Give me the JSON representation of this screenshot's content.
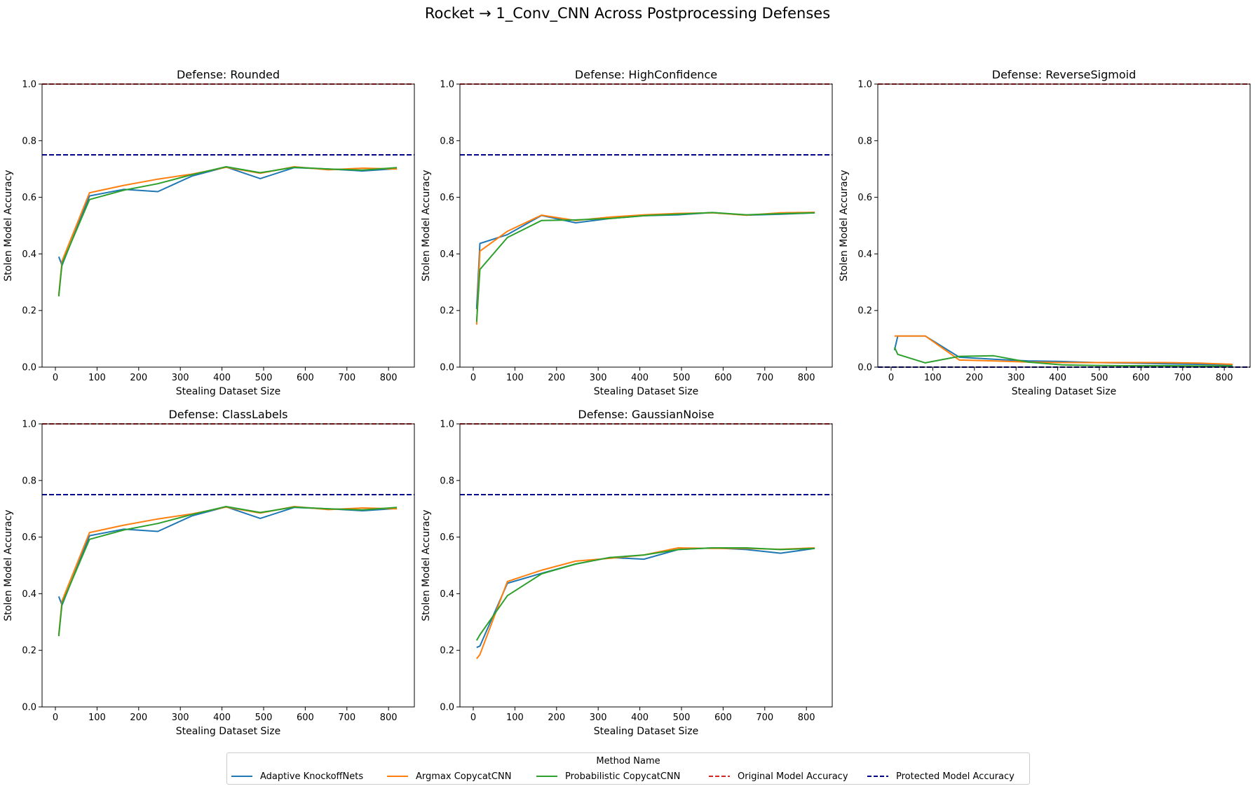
{
  "figure_title": "Rocket → 1_Conv_CNN Across Postprocessing Defenses",
  "colors": {
    "adaptive": "#1f77b4",
    "argmax": "#ff7f0e",
    "probabilistic": "#2ca02c",
    "original": "#d62728",
    "protected": "#00008b"
  },
  "legend": {
    "title": "Method Name",
    "items": [
      {
        "label": "Adaptive KnockoffNets",
        "color": "#1f77b4",
        "style": "solid"
      },
      {
        "label": "Argmax CopycatCNN",
        "color": "#ff7f0e",
        "style": "solid"
      },
      {
        "label": "Probabilistic CopycatCNN",
        "color": "#2ca02c",
        "style": "solid"
      },
      {
        "label": "Original Model Accuracy",
        "color": "#d62728",
        "style": "dashed"
      },
      {
        "label": "Protected Model Accuracy",
        "color": "#00008b",
        "style": "dashed"
      }
    ]
  },
  "chart_data": [
    {
      "type": "line",
      "title": "Defense: Rounded",
      "xlabel": "Stealing Dataset Size",
      "ylabel": "Stolen Model Accuracy",
      "xlim": [
        -32,
        862
      ],
      "ylim": [
        0,
        1.0
      ],
      "xticks": [
        0,
        100,
        200,
        300,
        400,
        500,
        600,
        700,
        800
      ],
      "yticks": [
        "0.0",
        "0.2",
        "0.4",
        "0.6",
        "0.8",
        "1.0"
      ],
      "hlines": [
        {
          "name": "Original Model Accuracy",
          "y": 1.0
        },
        {
          "name": "Protected Model Accuracy",
          "y": 0.75
        }
      ],
      "series": [
        {
          "name": "Adaptive KnockoffNets",
          "x": [
            8,
            16,
            82,
            164,
            246,
            328,
            410,
            492,
            574,
            656,
            738,
            820
          ],
          "values": [
            0.39,
            0.36,
            0.605,
            0.628,
            0.62,
            0.675,
            0.707,
            0.666,
            0.705,
            0.7,
            0.693,
            0.701
          ]
        },
        {
          "name": "Argmax CopycatCNN",
          "x": [
            8,
            16,
            82,
            164,
            246,
            328,
            410,
            492,
            574,
            656,
            738,
            820
          ],
          "values": [
            0.255,
            0.375,
            0.616,
            0.642,
            0.664,
            0.682,
            0.706,
            0.685,
            0.708,
            0.697,
            0.703,
            0.7
          ]
        },
        {
          "name": "Probabilistic CopycatCNN",
          "x": [
            8,
            16,
            82,
            164,
            246,
            328,
            410,
            492,
            574,
            656,
            738,
            820
          ],
          "values": [
            0.25,
            0.365,
            0.592,
            0.625,
            0.648,
            0.68,
            0.708,
            0.687,
            0.706,
            0.7,
            0.696,
            0.705
          ]
        }
      ]
    },
    {
      "type": "line",
      "title": "Defense: HighConfidence",
      "xlabel": "Stealing Dataset Size",
      "ylabel": "Stolen Model Accuracy",
      "xlim": [
        -32,
        862
      ],
      "ylim": [
        0,
        1.0
      ],
      "xticks": [
        0,
        100,
        200,
        300,
        400,
        500,
        600,
        700,
        800
      ],
      "yticks": [
        "0.0",
        "0.2",
        "0.4",
        "0.6",
        "0.8",
        "1.0"
      ],
      "hlines": [
        {
          "name": "Original Model Accuracy",
          "y": 1.0
        },
        {
          "name": "Protected Model Accuracy",
          "y": 0.75
        }
      ],
      "series": [
        {
          "name": "Adaptive KnockoffNets",
          "x": [
            8,
            16,
            82,
            164,
            246,
            328,
            410,
            492,
            574,
            656,
            738,
            820
          ],
          "values": [
            0.205,
            0.437,
            0.468,
            0.536,
            0.51,
            0.525,
            0.535,
            0.538,
            0.546,
            0.537,
            0.54,
            0.545
          ]
        },
        {
          "name": "Argmax CopycatCNN",
          "x": [
            8,
            16,
            82,
            164,
            246,
            328,
            410,
            492,
            574,
            656,
            738,
            820
          ],
          "values": [
            0.15,
            0.41,
            0.48,
            0.537,
            0.518,
            0.53,
            0.538,
            0.543,
            0.545,
            0.537,
            0.545,
            0.547
          ]
        },
        {
          "name": "Probabilistic CopycatCNN",
          "x": [
            8,
            16,
            82,
            164,
            246,
            328,
            410,
            492,
            574,
            656,
            738,
            820
          ],
          "values": [
            0.16,
            0.345,
            0.458,
            0.518,
            0.52,
            0.525,
            0.535,
            0.54,
            0.546,
            0.538,
            0.542,
            0.545
          ]
        }
      ]
    },
    {
      "type": "line",
      "title": "Defense: ReverseSigmoid",
      "xlabel": "Stealing Dataset Size",
      "ylabel": "Stolen Model Accuracy",
      "xlim": [
        -32,
        862
      ],
      "ylim": [
        0,
        1.0
      ],
      "xticks": [
        0,
        100,
        200,
        300,
        400,
        500,
        600,
        700,
        800
      ],
      "yticks": [
        "0.0",
        "0.2",
        "0.4",
        "0.6",
        "0.8",
        "1.0"
      ],
      "hlines": [
        {
          "name": "Original Model Accuracy",
          "y": 1.0
        },
        {
          "name": "Protected Model Accuracy",
          "y": 0.0
        }
      ],
      "series": [
        {
          "name": "Adaptive KnockoffNets",
          "x": [
            8,
            16,
            82,
            164,
            246,
            328,
            410,
            492,
            574,
            656,
            738,
            820
          ],
          "values": [
            0.06,
            0.11,
            0.11,
            0.035,
            0.028,
            0.022,
            0.02,
            0.016,
            0.014,
            0.012,
            0.01,
            0.008
          ]
        },
        {
          "name": "Argmax CopycatCNN",
          "x": [
            8,
            16,
            82,
            164,
            246,
            328,
            410,
            492,
            574,
            656,
            738,
            820
          ],
          "values": [
            0.11,
            0.11,
            0.11,
            0.025,
            0.022,
            0.018,
            0.016,
            0.016,
            0.016,
            0.016,
            0.014,
            0.01
          ]
        },
        {
          "name": "Probabilistic CopycatCNN",
          "x": [
            8,
            16,
            82,
            164,
            246,
            328,
            410,
            492,
            574,
            656,
            738,
            820
          ],
          "values": [
            0.07,
            0.045,
            0.015,
            0.038,
            0.04,
            0.018,
            0.008,
            0.006,
            0.005,
            0.005,
            0.004,
            0.004
          ]
        }
      ]
    },
    {
      "type": "line",
      "title": "Defense: ClassLabels",
      "xlabel": "Stealing Dataset Size",
      "ylabel": "Stolen Model Accuracy",
      "xlim": [
        -32,
        862
      ],
      "ylim": [
        0,
        1.0
      ],
      "xticks": [
        0,
        100,
        200,
        300,
        400,
        500,
        600,
        700,
        800
      ],
      "yticks": [
        "0.0",
        "0.2",
        "0.4",
        "0.6",
        "0.8",
        "1.0"
      ],
      "hlines": [
        {
          "name": "Original Model Accuracy",
          "y": 1.0
        },
        {
          "name": "Protected Model Accuracy",
          "y": 0.75
        }
      ],
      "series": [
        {
          "name": "Adaptive KnockoffNets",
          "x": [
            8,
            16,
            82,
            164,
            246,
            328,
            410,
            492,
            574,
            656,
            738,
            820
          ],
          "values": [
            0.39,
            0.36,
            0.605,
            0.628,
            0.62,
            0.675,
            0.707,
            0.666,
            0.705,
            0.7,
            0.693,
            0.701
          ]
        },
        {
          "name": "Argmax CopycatCNN",
          "x": [
            8,
            16,
            82,
            164,
            246,
            328,
            410,
            492,
            574,
            656,
            738,
            820
          ],
          "values": [
            0.255,
            0.375,
            0.616,
            0.642,
            0.664,
            0.682,
            0.706,
            0.685,
            0.708,
            0.697,
            0.703,
            0.7
          ]
        },
        {
          "name": "Probabilistic CopycatCNN",
          "x": [
            8,
            16,
            82,
            164,
            246,
            328,
            410,
            492,
            574,
            656,
            738,
            820
          ],
          "values": [
            0.25,
            0.365,
            0.592,
            0.625,
            0.648,
            0.68,
            0.708,
            0.687,
            0.706,
            0.7,
            0.696,
            0.705
          ]
        }
      ]
    },
    {
      "type": "line",
      "title": "Defense: GaussianNoise",
      "xlabel": "Stealing Dataset Size",
      "ylabel": "Stolen Model Accuracy",
      "xlim": [
        -32,
        862
      ],
      "ylim": [
        0,
        1.0
      ],
      "xticks": [
        0,
        100,
        200,
        300,
        400,
        500,
        600,
        700,
        800
      ],
      "yticks": [
        "0.0",
        "0.2",
        "0.4",
        "0.6",
        "0.8",
        "1.0"
      ],
      "hlines": [
        {
          "name": "Original Model Accuracy",
          "y": 1.0
        },
        {
          "name": "Protected Model Accuracy",
          "y": 0.75
        }
      ],
      "series": [
        {
          "name": "Adaptive KnockoffNets",
          "x": [
            8,
            16,
            82,
            164,
            246,
            328,
            410,
            492,
            574,
            656,
            738,
            820
          ],
          "values": [
            0.21,
            0.215,
            0.437,
            0.472,
            0.505,
            0.528,
            0.522,
            0.556,
            0.562,
            0.556,
            0.543,
            0.56
          ]
        },
        {
          "name": "Argmax CopycatCNN",
          "x": [
            8,
            16,
            82,
            164,
            246,
            328,
            410,
            492,
            574,
            656,
            738,
            820
          ],
          "values": [
            0.17,
            0.185,
            0.443,
            0.483,
            0.515,
            0.525,
            0.537,
            0.562,
            0.56,
            0.56,
            0.557,
            0.562
          ]
        },
        {
          "name": "Probabilistic CopycatCNN",
          "x": [
            8,
            16,
            82,
            164,
            246,
            328,
            410,
            492,
            574,
            656,
            738,
            820
          ],
          "values": [
            0.235,
            0.255,
            0.393,
            0.47,
            0.505,
            0.528,
            0.537,
            0.556,
            0.562,
            0.562,
            0.556,
            0.56
          ]
        }
      ]
    }
  ]
}
